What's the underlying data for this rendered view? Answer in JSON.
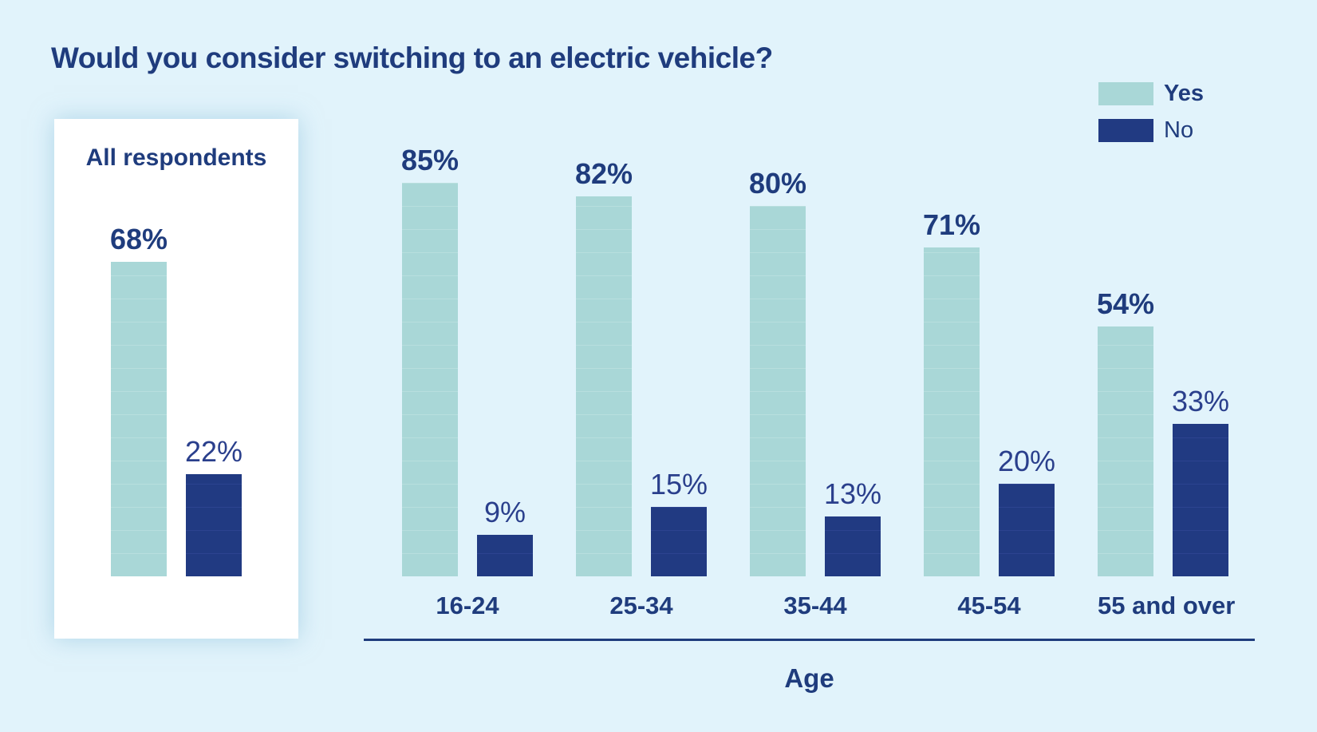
{
  "title": "Would you consider switching to an electric vehicle?",
  "legend": {
    "yes_label": "Yes",
    "no_label": "No"
  },
  "card": {
    "title": "All respondents",
    "yes_value": 68,
    "yes_label": "68%",
    "no_value": 22,
    "no_label": "22%"
  },
  "axis": {
    "label": "Age"
  },
  "chart_data": {
    "type": "bar",
    "title": "Would you consider switching to an electric vehicle?",
    "categories": [
      "16-24",
      "25-34",
      "35-44",
      "45-54",
      "55 and over"
    ],
    "series": [
      {
        "name": "Yes",
        "values": [
          85,
          82,
          80,
          71,
          54
        ],
        "labels": [
          "85%",
          "82%",
          "80%",
          "71%",
          "54%"
        ]
      },
      {
        "name": "No",
        "values": [
          9,
          15,
          13,
          20,
          33
        ],
        "labels": [
          "9%",
          "15%",
          "13%",
          "20%",
          "33%"
        ]
      }
    ],
    "all_respondents": {
      "Yes": 68,
      "No": 22
    },
    "xlabel": "Age",
    "ylabel": "",
    "unit": "%",
    "ylim": [
      0,
      100
    ],
    "grid": false,
    "legend_position": "top-right"
  },
  "colors": {
    "background": "#e1f3fb",
    "card": "#ffffff",
    "yes_bar": "#a9d7d7",
    "yes_bar_stripe": "#b8dfde",
    "no_bar": "#213a82",
    "no_bar_stripe": "#2c4390",
    "heading_text": "#1f3c7d",
    "value_text_no": "#2a3f8c"
  }
}
